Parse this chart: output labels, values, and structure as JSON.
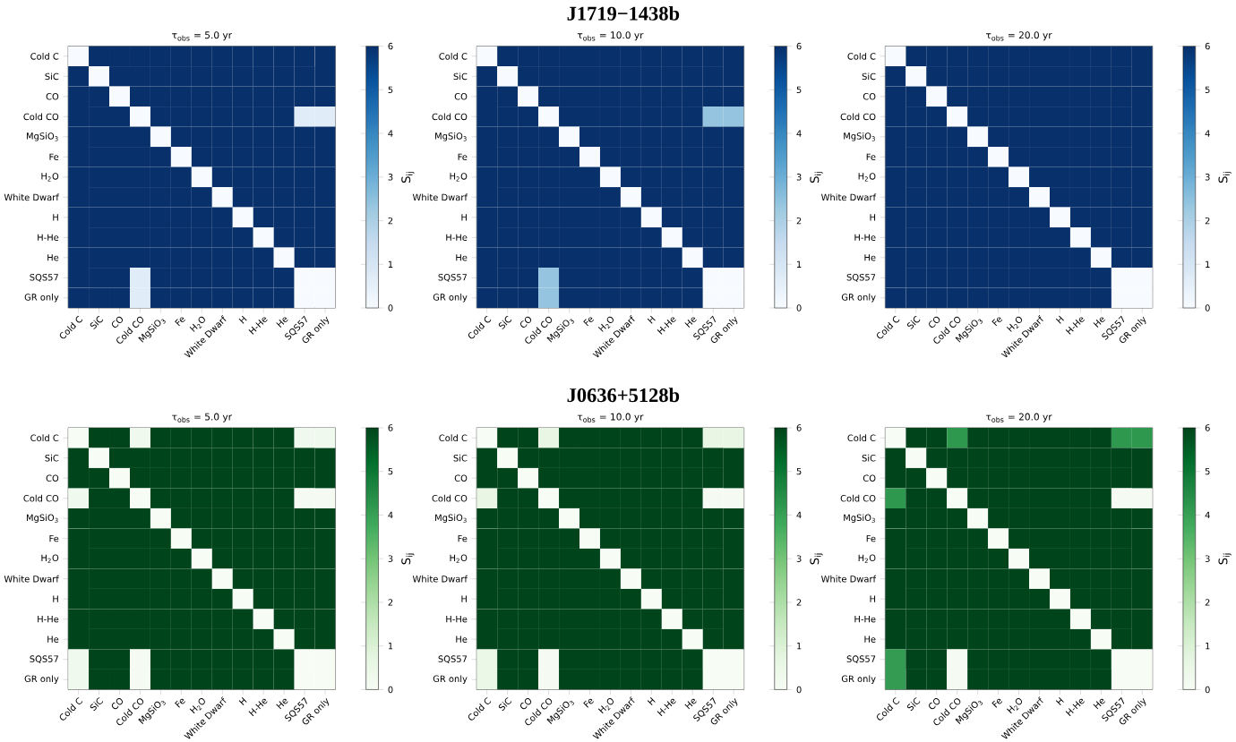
{
  "chart_data": [
    {
      "type": "heatmap",
      "title": "τ$_{obs}$ = 5.0 yr",
      "clabel": "S$_{ij}$",
      "clim": [
        0,
        6
      ],
      "cticks": [
        0,
        1,
        2,
        3,
        4,
        5,
        6
      ],
      "colors": [
        "#f7fbff",
        "#deebf7",
        "#c6dbef",
        "#9ecae1",
        "#6baed6",
        "#4292c6",
        "#2171b5",
        "#08519c",
        "#08306b"
      ],
      "categories": [
        "Cold C",
        "SiC",
        "CO",
        "Cold CO",
        "MgSiO$_{3}$",
        "Fe",
        "H$_{2}$O",
        "White Dwarf",
        "H",
        "H-He",
        "He",
        "SQS57",
        "GR only"
      ],
      "y_categories": [
        "Cold C",
        "SiC",
        "CO",
        "Cold CO",
        "MgSiO$_{3}$",
        "Fe",
        "H$_{2}$O",
        "White Dwarf",
        "H",
        "H-He",
        "He",
        "SQS57",
        "GR only"
      ],
      "cells": [
        [
          0,
          6,
          6,
          6,
          6,
          6,
          6,
          6,
          6,
          6,
          6,
          6,
          6
        ],
        [
          6,
          0,
          6,
          6,
          6,
          6,
          6,
          6,
          6,
          6,
          6,
          6,
          6
        ],
        [
          6,
          6,
          0,
          6,
          6,
          6,
          6,
          6,
          6,
          6,
          6,
          6,
          6
        ],
        [
          6,
          6,
          6,
          0,
          6,
          6,
          6,
          6,
          6,
          6,
          6,
          0.7,
          0.7
        ],
        [
          6,
          6,
          6,
          6,
          0,
          6,
          6,
          6,
          6,
          6,
          6,
          6,
          6
        ],
        [
          6,
          6,
          6,
          6,
          6,
          0,
          6,
          6,
          6,
          6,
          6,
          6,
          6
        ],
        [
          6,
          6,
          6,
          6,
          6,
          6,
          0,
          6,
          6,
          6,
          6,
          6,
          6
        ],
        [
          6,
          6,
          6,
          6,
          6,
          6,
          6,
          0,
          6,
          6,
          6,
          6,
          6
        ],
        [
          6,
          6,
          6,
          6,
          6,
          6,
          6,
          6,
          0,
          6,
          6,
          6,
          6
        ],
        [
          6,
          6,
          6,
          6,
          6,
          6,
          6,
          6,
          6,
          0,
          6,
          6,
          6
        ],
        [
          6,
          6,
          6,
          6,
          6,
          6,
          6,
          6,
          6,
          6,
          0,
          6,
          6
        ],
        [
          6,
          6,
          6,
          0.7,
          6,
          6,
          6,
          6,
          6,
          6,
          6,
          0,
          0
        ],
        [
          6,
          6,
          6,
          0.7,
          6,
          6,
          6,
          6,
          6,
          6,
          6,
          0,
          0
        ]
      ]
    },
    {
      "type": "heatmap",
      "title": "τ$_{obs}$ = 10.0 yr",
      "annotations": [
        "J1719−1438b"
      ],
      "clabel": "S$_{ij}$",
      "clim": [
        0,
        6
      ],
      "cticks": [
        0,
        1,
        2,
        3,
        4,
        5,
        6
      ],
      "colors": [
        "#f7fbff",
        "#deebf7",
        "#c6dbef",
        "#9ecae1",
        "#6baed6",
        "#4292c6",
        "#2171b5",
        "#08519c",
        "#08306b"
      ],
      "categories": [
        "Cold C",
        "SiC",
        "CO",
        "Cold CO",
        "MgSiO$_{3}$",
        "Fe",
        "H$_{2}$O",
        "White Dwarf",
        "H",
        "H-He",
        "He",
        "SQS57",
        "GR only"
      ],
      "y_categories": [
        "Cold C",
        "SiC",
        "CO",
        "Cold CO",
        "MgSiO$_{3}$",
        "Fe",
        "H$_{2}$O",
        "White Dwarf",
        "H",
        "H-He",
        "He",
        "SQS57",
        "GR only"
      ],
      "cells": [
        [
          0,
          6,
          6,
          6,
          6,
          6,
          6,
          6,
          6,
          6,
          6,
          6,
          6
        ],
        [
          6,
          0,
          6,
          6,
          6,
          6,
          6,
          6,
          6,
          6,
          6,
          6,
          6
        ],
        [
          6,
          6,
          0,
          6,
          6,
          6,
          6,
          6,
          6,
          6,
          6,
          6,
          6
        ],
        [
          6,
          6,
          6,
          0,
          6,
          6,
          6,
          6,
          6,
          6,
          6,
          2.4,
          2.4
        ],
        [
          6,
          6,
          6,
          6,
          0,
          6,
          6,
          6,
          6,
          6,
          6,
          6,
          6
        ],
        [
          6,
          6,
          6,
          6,
          6,
          0,
          6,
          6,
          6,
          6,
          6,
          6,
          6
        ],
        [
          6,
          6,
          6,
          6,
          6,
          6,
          0,
          6,
          6,
          6,
          6,
          6,
          6
        ],
        [
          6,
          6,
          6,
          6,
          6,
          6,
          6,
          0,
          6,
          6,
          6,
          6,
          6
        ],
        [
          6,
          6,
          6,
          6,
          6,
          6,
          6,
          6,
          0,
          6,
          6,
          6,
          6
        ],
        [
          6,
          6,
          6,
          6,
          6,
          6,
          6,
          6,
          6,
          0,
          6,
          6,
          6
        ],
        [
          6,
          6,
          6,
          6,
          6,
          6,
          6,
          6,
          6,
          6,
          0,
          6,
          6
        ],
        [
          6,
          6,
          6,
          2.4,
          6,
          6,
          6,
          6,
          6,
          6,
          6,
          0,
          0
        ],
        [
          6,
          6,
          6,
          2.4,
          6,
          6,
          6,
          6,
          6,
          6,
          6,
          0,
          0
        ]
      ]
    },
    {
      "type": "heatmap",
      "title": "τ$_{obs}$ = 20.0 yr",
      "clabel": "S$_{ij}$",
      "clim": [
        0,
        6
      ],
      "cticks": [
        0,
        1,
        2,
        3,
        4,
        5,
        6
      ],
      "colors": [
        "#f7fbff",
        "#deebf7",
        "#c6dbef",
        "#9ecae1",
        "#6baed6",
        "#4292c6",
        "#2171b5",
        "#08519c",
        "#08306b"
      ],
      "categories": [
        "Cold C",
        "SiC",
        "CO",
        "Cold CO",
        "MgSiO$_{3}$",
        "Fe",
        "H$_{2}$O",
        "White Dwarf",
        "H",
        "H-He",
        "He",
        "SQS57",
        "GR only"
      ],
      "y_categories": [
        "Cold C",
        "SiC",
        "CO",
        "Cold CO",
        "MgSiO$_{3}$",
        "Fe",
        "H$_{2}$O",
        "White Dwarf",
        "H",
        "H-He",
        "He",
        "SQS57",
        "GR only"
      ],
      "cells": [
        [
          0,
          6,
          6,
          6,
          6,
          6,
          6,
          6,
          6,
          6,
          6,
          6,
          6
        ],
        [
          6,
          0,
          6,
          6,
          6,
          6,
          6,
          6,
          6,
          6,
          6,
          6,
          6
        ],
        [
          6,
          6,
          0,
          6,
          6,
          6,
          6,
          6,
          6,
          6,
          6,
          6,
          6
        ],
        [
          6,
          6,
          6,
          0,
          6,
          6,
          6,
          6,
          6,
          6,
          6,
          6,
          6
        ],
        [
          6,
          6,
          6,
          6,
          0,
          6,
          6,
          6,
          6,
          6,
          6,
          6,
          6
        ],
        [
          6,
          6,
          6,
          6,
          6,
          0,
          6,
          6,
          6,
          6,
          6,
          6,
          6
        ],
        [
          6,
          6,
          6,
          6,
          6,
          6,
          0,
          6,
          6,
          6,
          6,
          6,
          6
        ],
        [
          6,
          6,
          6,
          6,
          6,
          6,
          6,
          0,
          6,
          6,
          6,
          6,
          6
        ],
        [
          6,
          6,
          6,
          6,
          6,
          6,
          6,
          6,
          0,
          6,
          6,
          6,
          6
        ],
        [
          6,
          6,
          6,
          6,
          6,
          6,
          6,
          6,
          6,
          0,
          6,
          6,
          6
        ],
        [
          6,
          6,
          6,
          6,
          6,
          6,
          6,
          6,
          6,
          6,
          0,
          6,
          6
        ],
        [
          6,
          6,
          6,
          6,
          6,
          6,
          6,
          6,
          6,
          6,
          6,
          0,
          0
        ],
        [
          6,
          6,
          6,
          6,
          6,
          6,
          6,
          6,
          6,
          6,
          6,
          0,
          0
        ]
      ]
    },
    {
      "type": "heatmap",
      "title": "τ$_{obs}$ = 5.0 yr",
      "clabel": "S$_{ij}$",
      "clim": [
        0,
        6
      ],
      "cticks": [
        0,
        1,
        2,
        3,
        4,
        5,
        6
      ],
      "colors": [
        "#f7fcf5",
        "#e5f5e0",
        "#c7e9c0",
        "#a1d99b",
        "#74c476",
        "#41ab5d",
        "#238b45",
        "#006d2c",
        "#00441b"
      ],
      "categories": [
        "Cold C",
        "SiC",
        "CO",
        "Cold CO",
        "MgSiO$_{3}$",
        "Fe",
        "H$_{2}$O",
        "White Dwarf",
        "H",
        "H-He",
        "He",
        "SQS57",
        "GR only"
      ],
      "y_categories": [
        "Cold C",
        "SiC",
        "CO",
        "Cold CO",
        "MgSiO$_{3}$",
        "Fe",
        "H$_{2}$O",
        "White Dwarf",
        "H",
        "H-He",
        "He",
        "SQS57",
        "GR only"
      ],
      "cells": [
        [
          0,
          6,
          6,
          0.3,
          6,
          6,
          6,
          6,
          6,
          6,
          6,
          0.3,
          0.3
        ],
        [
          6,
          0,
          6,
          6,
          6,
          6,
          6,
          6,
          6,
          6,
          6,
          6,
          6
        ],
        [
          6,
          6,
          0,
          6,
          6,
          6,
          6,
          6,
          6,
          6,
          6,
          6,
          6
        ],
        [
          0.3,
          6,
          6,
          0,
          6,
          6,
          6,
          6,
          6,
          6,
          6,
          0.1,
          0.1
        ],
        [
          6,
          6,
          6,
          6,
          0,
          6,
          6,
          6,
          6,
          6,
          6,
          6,
          6
        ],
        [
          6,
          6,
          6,
          6,
          6,
          0,
          6,
          6,
          6,
          6,
          6,
          6,
          6
        ],
        [
          6,
          6,
          6,
          6,
          6,
          6,
          0,
          6,
          6,
          6,
          6,
          6,
          6
        ],
        [
          6,
          6,
          6,
          6,
          6,
          6,
          6,
          0,
          6,
          6,
          6,
          6,
          6
        ],
        [
          6,
          6,
          6,
          6,
          6,
          6,
          6,
          6,
          0,
          6,
          6,
          6,
          6
        ],
        [
          6,
          6,
          6,
          6,
          6,
          6,
          6,
          6,
          6,
          0,
          6,
          6,
          6
        ],
        [
          6,
          6,
          6,
          6,
          6,
          6,
          6,
          6,
          6,
          6,
          0,
          6,
          6
        ],
        [
          0.3,
          6,
          6,
          0.1,
          6,
          6,
          6,
          6,
          6,
          6,
          6,
          0,
          0
        ],
        [
          0.3,
          6,
          6,
          0.1,
          6,
          6,
          6,
          6,
          6,
          6,
          6,
          0,
          0
        ]
      ]
    },
    {
      "type": "heatmap",
      "title": "τ$_{obs}$ = 10.0 yr",
      "annotations": [
        "J0636+5128b"
      ],
      "clabel": "S$_{ij}$",
      "clim": [
        0,
        6
      ],
      "cticks": [
        0,
        1,
        2,
        3,
        4,
        5,
        6
      ],
      "colors": [
        "#f7fcf5",
        "#e5f5e0",
        "#c7e9c0",
        "#a1d99b",
        "#74c476",
        "#41ab5d",
        "#238b45",
        "#006d2c",
        "#00441b"
      ],
      "categories": [
        "Cold C",
        "SiC",
        "CO",
        "Cold CO",
        "MgSiO$_{3}$",
        "Fe",
        "H$_{2}$O",
        "White Dwarf",
        "H",
        "H-He",
        "He",
        "SQS57",
        "GR only"
      ],
      "y_categories": [
        "Cold C",
        "SiC",
        "CO",
        "Cold CO",
        "MgSiO$_{3}$",
        "Fe",
        "H$_{2}$O",
        "White Dwarf",
        "H",
        "H-He",
        "He",
        "SQS57",
        "GR only"
      ],
      "cells": [
        [
          0,
          6,
          6,
          0.6,
          6,
          6,
          6,
          6,
          6,
          6,
          6,
          0.6,
          0.6
        ],
        [
          6,
          0,
          6,
          6,
          6,
          6,
          6,
          6,
          6,
          6,
          6,
          6,
          6
        ],
        [
          6,
          6,
          0,
          6,
          6,
          6,
          6,
          6,
          6,
          6,
          6,
          6,
          6
        ],
        [
          0.6,
          6,
          6,
          0,
          6,
          6,
          6,
          6,
          6,
          6,
          6,
          0.1,
          0.1
        ],
        [
          6,
          6,
          6,
          6,
          0,
          6,
          6,
          6,
          6,
          6,
          6,
          6,
          6
        ],
        [
          6,
          6,
          6,
          6,
          6,
          0,
          6,
          6,
          6,
          6,
          6,
          6,
          6
        ],
        [
          6,
          6,
          6,
          6,
          6,
          6,
          0,
          6,
          6,
          6,
          6,
          6,
          6
        ],
        [
          6,
          6,
          6,
          6,
          6,
          6,
          6,
          0,
          6,
          6,
          6,
          6,
          6
        ],
        [
          6,
          6,
          6,
          6,
          6,
          6,
          6,
          6,
          0,
          6,
          6,
          6,
          6
        ],
        [
          6,
          6,
          6,
          6,
          6,
          6,
          6,
          6,
          6,
          0,
          6,
          6,
          6
        ],
        [
          6,
          6,
          6,
          6,
          6,
          6,
          6,
          6,
          6,
          6,
          0,
          6,
          6
        ],
        [
          0.5,
          6,
          6,
          0.1,
          6,
          6,
          6,
          6,
          6,
          6,
          6,
          0,
          0
        ],
        [
          0.5,
          6,
          6,
          0.1,
          6,
          6,
          6,
          6,
          6,
          6,
          6,
          0,
          0
        ]
      ]
    },
    {
      "type": "heatmap",
      "title": "τ$_{obs}$ = 20.0 yr",
      "clabel": "S$_{ij}$",
      "clim": [
        0,
        6
      ],
      "cticks": [
        0,
        1,
        2,
        3,
        4,
        5,
        6
      ],
      "colors": [
        "#f7fcf5",
        "#e5f5e0",
        "#c7e9c0",
        "#a1d99b",
        "#74c476",
        "#41ab5d",
        "#238b45",
        "#006d2c",
        "#00441b"
      ],
      "categories": [
        "Cold C",
        "SiC",
        "CO",
        "Cold CO",
        "MgSiO$_{3}$",
        "Fe",
        "H$_{2}$O",
        "White Dwarf",
        "H",
        "H-He",
        "He",
        "SQS57",
        "GR only"
      ],
      "y_categories": [
        "Cold C",
        "SiC",
        "CO",
        "Cold CO",
        "MgSiO$_{3}$",
        "Fe",
        "H$_{2}$O",
        "White Dwarf",
        "H",
        "H-He",
        "He",
        "SQS57",
        "GR only"
      ],
      "cells": [
        [
          0,
          6,
          6,
          4.2,
          6,
          6,
          6,
          6,
          6,
          6,
          6,
          4.2,
          4.2
        ],
        [
          6,
          0,
          6,
          6,
          6,
          6,
          6,
          6,
          6,
          6,
          6,
          6,
          6
        ],
        [
          6,
          6,
          0,
          6,
          6,
          6,
          6,
          6,
          6,
          6,
          6,
          6,
          6
        ],
        [
          4.2,
          6,
          6,
          0,
          6,
          6,
          6,
          6,
          6,
          6,
          6,
          0.1,
          0.1
        ],
        [
          6,
          6,
          6,
          6,
          0,
          6,
          6,
          6,
          6,
          6,
          6,
          6,
          6
        ],
        [
          6,
          6,
          6,
          6,
          6,
          0,
          6,
          6,
          6,
          6,
          6,
          6,
          6
        ],
        [
          6,
          6,
          6,
          6,
          6,
          6,
          0,
          6,
          6,
          6,
          6,
          6,
          6
        ],
        [
          6,
          6,
          6,
          6,
          6,
          6,
          6,
          0,
          6,
          6,
          6,
          6,
          6
        ],
        [
          6,
          6,
          6,
          6,
          6,
          6,
          6,
          6,
          0,
          6,
          6,
          6,
          6
        ],
        [
          6,
          6,
          6,
          6,
          6,
          6,
          6,
          6,
          6,
          0,
          6,
          6,
          6
        ],
        [
          6,
          6,
          6,
          6,
          6,
          6,
          6,
          6,
          6,
          6,
          0,
          6,
          6
        ],
        [
          4.1,
          6,
          6,
          0.1,
          6,
          6,
          6,
          6,
          6,
          6,
          6,
          0,
          0
        ],
        [
          4.1,
          6,
          6,
          0.1,
          6,
          6,
          6,
          6,
          6,
          6,
          6,
          0,
          0
        ]
      ]
    }
  ]
}
